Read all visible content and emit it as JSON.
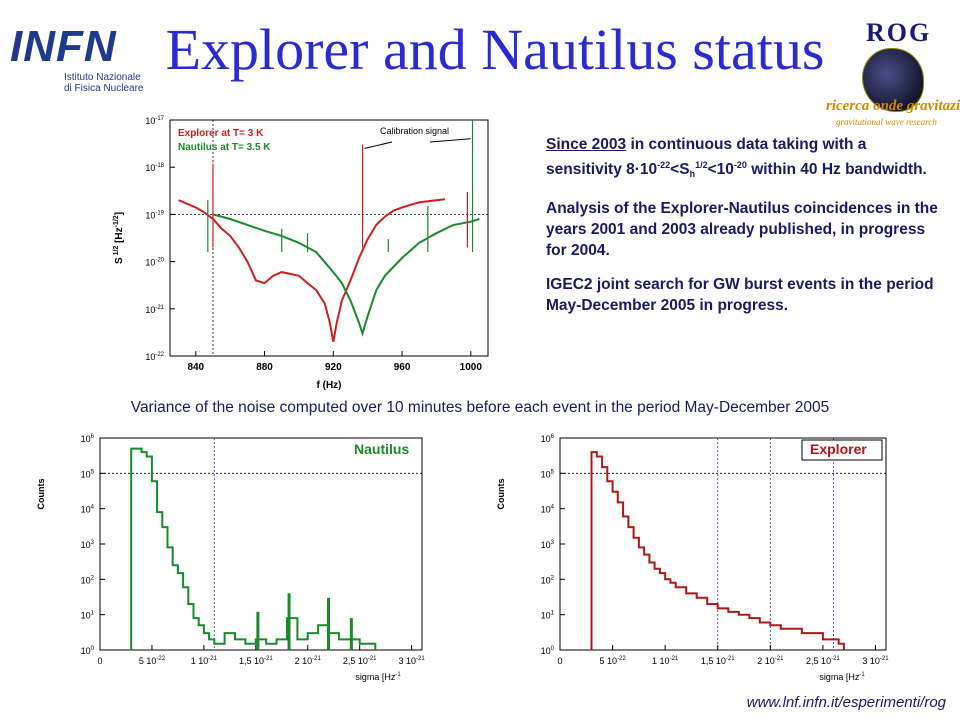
{
  "header": {
    "title": "Explorer and Nautilus status",
    "infn_logo": {
      "mark": "INFN",
      "line1": "Istituto Nazionale",
      "line2": "di Fisica Nucleare"
    },
    "rog_logo": {
      "mark": "ROG",
      "line1": "ricerca onde gravitazionali",
      "line2": "gravitational wave research"
    }
  },
  "description": {
    "p1_link": "Since 2003",
    "p1_a": " in continuous data taking with a sensitivity 8·10",
    "p1_exp1": "-22",
    "p1_b": "<S",
    "p1_sub": "h",
    "p1_exp2": "1/2",
    "p1_c": "<10",
    "p1_exp3": "-20",
    "p1_d": " within 40 Hz bandwidth.",
    "p2": "Analysis of the Explorer-Nautilus coincidences in the years 2001 and 2003 already published, in progress for 2004.",
    "p3": "IGEC2 joint search for GW burst events in the period May-December 2005 in progress."
  },
  "caption": "Variance of the noise computed over 10 minutes before each event in the period May-December 2005",
  "footer": {
    "url": "www.lnf.infn.it/esperimenti/rog"
  },
  "chart_data": [
    {
      "type": "line",
      "xlabel": "f (Hz)",
      "ylabel": "S_h^1/2 [Hz^-1/2]",
      "xlim": [
        825,
        1010
      ],
      "ylim": [
        1e-22,
        1e-17
      ],
      "yscale": "log",
      "xticks": [
        "840",
        "880",
        "920",
        "960",
        "1000"
      ],
      "yticks": [
        "10",
        "10",
        "10",
        "10",
        "10",
        "10"
      ],
      "ytick_exponents": [
        "-22",
        "-21",
        "-20",
        "-19",
        "-18",
        "-17"
      ],
      "legend_position": "top-left",
      "reference_lines": {
        "y": [
          1e-17,
          1e-19
        ],
        "x": [
          850
        ]
      },
      "annotation": {
        "text": "Calibration signal",
        "targets_x": [
          937,
          1001
        ]
      },
      "series": [
        {
          "name": "Explorer at T= 3 K",
          "color": "#cc2020",
          "x": [
            830,
            840,
            845,
            850,
            855,
            860,
            865,
            870,
            875,
            880,
            885,
            890,
            895,
            900,
            905,
            910,
            915,
            918,
            920,
            922,
            925,
            930,
            935,
            940,
            945,
            950,
            955,
            960,
            965,
            970,
            975,
            980,
            985
          ],
          "y": [
            2e-19,
            1.4e-19,
            1.1e-19,
            8e-20,
            5e-20,
            3.5e-20,
            2e-20,
            1e-20,
            4e-21,
            3.5e-21,
            5e-21,
            6e-21,
            5.5e-21,
            5e-21,
            3.5e-21,
            2.5e-21,
            1.3e-21,
            5e-22,
            2e-22,
            5e-22,
            1.5e-21,
            4e-21,
            1.2e-20,
            3e-20,
            6e-20,
            9e-20,
            1.2e-19,
            1.4e-19,
            1.6e-19,
            1.8e-19,
            1.9e-19,
            2e-19,
            2.1e-19
          ]
        },
        {
          "name": "Nautilus at T= 3.5 K",
          "color": "#1a8a2a",
          "x": [
            850,
            860,
            870,
            880,
            890,
            900,
            910,
            920,
            925,
            930,
            935,
            937,
            940,
            945,
            950,
            960,
            970,
            980,
            990,
            1000,
            1005
          ],
          "y": [
            1e-19,
            8e-20,
            6e-20,
            4.5e-20,
            3.5e-20,
            2.5e-20,
            1.6e-20,
            6e-21,
            3.5e-21,
            1.5e-21,
            5e-22,
            3e-22,
            7e-22,
            2.5e-21,
            5e-21,
            1.2e-20,
            2.5e-20,
            4e-20,
            6e-20,
            7e-20,
            8e-20
          ]
        }
      ]
    },
    {
      "type": "histogram",
      "title": "Nautilus",
      "xlabel": "sigma [Hz",
      "xlabel_exp": "-1",
      "ylabel": "Counts",
      "yscale": "log",
      "xlim": [
        0,
        3.1e-21
      ],
      "ylim": [
        1,
        1000000.0
      ],
      "xticks": [
        "0",
        "5 10",
        "1 10",
        "1,5 10",
        "2 10",
        "2,5 10",
        "3 10"
      ],
      "xtick_exponents": [
        "",
        "-22",
        "-21",
        "-21",
        "-21",
        "-21",
        "-21"
      ],
      "yticks": [
        "10",
        "10",
        "10",
        "10",
        "10",
        "10",
        "10"
      ],
      "ytick_exponents": [
        "0",
        "1",
        "2",
        "3",
        "4",
        "5",
        "6"
      ],
      "color": "#1a8a2a",
      "reference_lines": {
        "x": [
          1.1e-21
        ],
        "y": [
          100000.0
        ]
      },
      "bins": [
        [
          3e-22,
          500000.0
        ],
        [
          3.5e-22,
          500000.0
        ],
        [
          4e-22,
          400000.0
        ],
        [
          4.5e-22,
          300000.0
        ],
        [
          5e-22,
          60000.0
        ],
        [
          5.5e-22,
          8000.0
        ],
        [
          6e-22,
          3000.0
        ],
        [
          6.5e-22,
          800
        ],
        [
          7e-22,
          250
        ],
        [
          7.5e-22,
          150
        ],
        [
          8e-22,
          60
        ],
        [
          8.5e-22,
          20
        ],
        [
          9e-22,
          8
        ],
        [
          9.5e-22,
          5
        ],
        [
          1e-21,
          3
        ],
        [
          1.05e-21,
          2
        ],
        [
          1.1e-21,
          1.5
        ],
        [
          1.2e-21,
          3
        ],
        [
          1.3e-21,
          2
        ],
        [
          1.4e-21,
          1.5
        ],
        [
          1.5e-21,
          2
        ],
        [
          1.6e-21,
          1.5
        ],
        [
          1.7e-21,
          2
        ],
        [
          1.8e-21,
          8
        ],
        [
          1.9e-21,
          2
        ],
        [
          2e-21,
          3
        ],
        [
          2.1e-21,
          5
        ],
        [
          2.2e-21,
          3
        ],
        [
          2.3e-21,
          2
        ],
        [
          2.4e-21,
          2
        ],
        [
          2.5e-21,
          1.5
        ],
        [
          2.6e-21,
          1.5
        ]
      ],
      "spikes": [
        [
          1.82e-21,
          40
        ],
        [
          2.2e-21,
          30
        ],
        [
          1.52e-21,
          12
        ],
        [
          2.42e-21,
          8
        ]
      ]
    },
    {
      "type": "histogram",
      "title": "Explorer",
      "xlabel": "sigma [Hz",
      "xlabel_exp": "-1",
      "ylabel": "Counts",
      "yscale": "log",
      "xlim": [
        0,
        3.1e-21
      ],
      "ylim": [
        1,
        1000000.0
      ],
      "xticks": [
        "0",
        "5 10",
        "1 10",
        "1,5 10",
        "2 10",
        "2,5 10",
        "3 10"
      ],
      "xtick_exponents": [
        "",
        "-22",
        "-21",
        "-21",
        "-21",
        "-21",
        "-21"
      ],
      "yticks": [
        "10",
        "10",
        "10",
        "10",
        "10",
        "10",
        "10"
      ],
      "ytick_exponents": [
        "0",
        "1",
        "2",
        "3",
        "4",
        "5",
        "6"
      ],
      "color": "#b01818",
      "reference_lines": {
        "x": [
          1.5e-21,
          2e-21,
          2.6e-21
        ],
        "y": [
          100000.0
        ]
      },
      "bins": [
        [
          3e-22,
          400000.0
        ],
        [
          3.5e-22,
          300000.0
        ],
        [
          4e-22,
          150000.0
        ],
        [
          4.5e-22,
          60000.0
        ],
        [
          5e-22,
          30000.0
        ],
        [
          5.5e-22,
          15000.0
        ],
        [
          6e-22,
          6000.0
        ],
        [
          6.5e-22,
          3000.0
        ],
        [
          7e-22,
          1500.0
        ],
        [
          7.5e-22,
          800
        ],
        [
          8e-22,
          500
        ],
        [
          8.5e-22,
          300
        ],
        [
          9e-22,
          200
        ],
        [
          9.5e-22,
          150
        ],
        [
          1e-21,
          100
        ],
        [
          1.05e-21,
          80
        ],
        [
          1.1e-21,
          60
        ],
        [
          1.2e-21,
          40
        ],
        [
          1.3e-21,
          30
        ],
        [
          1.4e-21,
          20
        ],
        [
          1.5e-21,
          15
        ],
        [
          1.6e-21,
          12
        ],
        [
          1.7e-21,
          10
        ],
        [
          1.8e-21,
          8
        ],
        [
          1.9e-21,
          6
        ],
        [
          2e-21,
          5
        ],
        [
          2.1e-21,
          4
        ],
        [
          2.2e-21,
          4
        ],
        [
          2.3e-21,
          3
        ],
        [
          2.4e-21,
          3
        ],
        [
          2.5e-21,
          2
        ],
        [
          2.6e-21,
          2
        ],
        [
          2.65e-21,
          1.5
        ]
      ],
      "spikes": []
    }
  ]
}
